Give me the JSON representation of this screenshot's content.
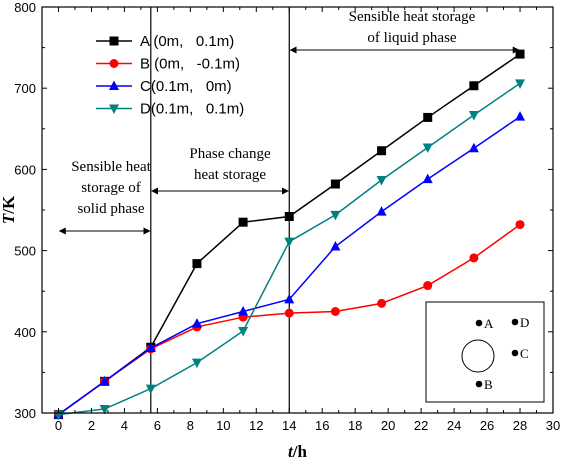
{
  "chart_data": {
    "type": "line",
    "title": "",
    "xlabel_italic": "t",
    "xlabel_unit": "/h",
    "ylabel_italic": "T",
    "ylabel_unit": "/K",
    "xlim": [
      -1,
      30
    ],
    "ylim": [
      300,
      800
    ],
    "xticks": [
      0,
      2,
      4,
      6,
      8,
      10,
      12,
      14,
      16,
      18,
      20,
      22,
      24,
      26,
      28,
      30
    ],
    "yticks": [
      300,
      400,
      500,
      600,
      700,
      800
    ],
    "legend_position": "top-left",
    "series": [
      {
        "name": "A (0m,   0.1m)",
        "color": "#000000",
        "marker": "square",
        "x": [
          0,
          2.8,
          5.6,
          8.4,
          11.2,
          14.0,
          16.8,
          19.6,
          22.4,
          25.2,
          28.0
        ],
        "y": [
          298,
          339,
          381,
          484,
          535,
          542,
          582,
          623,
          664,
          703,
          742
        ]
      },
      {
        "name": "B (0m,   -0.1m)",
        "color": "#ff0000",
        "marker": "circle",
        "x": [
          0,
          2.8,
          5.6,
          8.4,
          11.2,
          14.0,
          16.8,
          19.6,
          22.4,
          25.2,
          28.0
        ],
        "y": [
          298,
          339,
          379,
          406,
          418,
          423,
          425,
          435,
          457,
          491,
          532
        ]
      },
      {
        "name": "C(0.1m,   0m)",
        "color": "#0000ff",
        "marker": "triangle-up",
        "x": [
          0,
          2.8,
          5.6,
          8.4,
          11.2,
          14.0,
          16.8,
          19.6,
          22.4,
          25.2,
          28.0
        ],
        "y": [
          298,
          339,
          380,
          410,
          425,
          440,
          505,
          548,
          588,
          626,
          665
        ]
      },
      {
        "name": "D(0.1m,   0.1m)",
        "color": "#008080",
        "marker": "triangle-down",
        "x": [
          0,
          2.8,
          5.6,
          8.4,
          11.2,
          14.0,
          16.8,
          19.6,
          22.4,
          25.2,
          28.0
        ],
        "y": [
          298,
          305,
          330,
          362,
          401,
          511,
          544,
          587,
          627,
          667,
          706
        ]
      }
    ],
    "phase_boundaries": [
      5.6,
      14.0
    ],
    "annotations": [
      {
        "id": "solid",
        "lines": [
          "Sensible heat",
          "storage of",
          "solid phase"
        ],
        "arrow_from": 0,
        "arrow_to": 5.6
      },
      {
        "id": "change",
        "lines": [
          "Phase change",
          "heat storage"
        ],
        "arrow_from": 5.6,
        "arrow_to": 14.0
      },
      {
        "id": "liquid",
        "lines": [
          "Sensible heat storage",
          "of liquid phase"
        ],
        "arrow_from": 14.0,
        "arrow_to": 28.0
      }
    ],
    "inset": {
      "points": [
        {
          "label": "A"
        },
        {
          "label": "D"
        },
        {
          "label": "C"
        },
        {
          "label": "B"
        }
      ]
    }
  }
}
